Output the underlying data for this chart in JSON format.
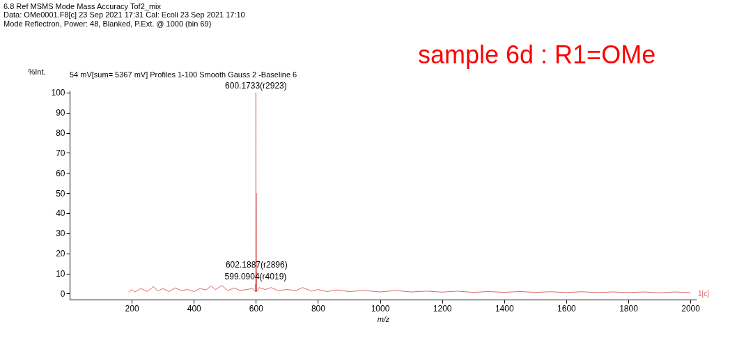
{
  "chart_data": {
    "type": "line",
    "title": "6.8 Ref MSMS Mode Mass Accuracy Tof2_mix",
    "subtitle": "Data: OMe0001.F8[c] 23 Sep 2021 17:31 Cal: Ecoli 23 Sep 2021 17:10\nMode Reflectron, Power: 48, Blanked, P.Ext. @ 1000 (bin 69)",
    "xlabel": "m/z",
    "ylabel": "%Int.",
    "x": [
      190,
      200,
      210,
      230,
      250,
      270,
      285,
      300,
      320,
      340,
      360,
      380,
      400,
      420,
      440,
      455,
      470,
      490,
      510,
      530,
      550,
      570,
      590,
      598,
      599.09,
      599.6,
      600.17,
      600.7,
      601.18,
      601.7,
      602.19,
      602.7,
      610,
      630,
      650,
      670,
      700,
      730,
      750,
      780,
      800,
      830,
      860,
      900,
      950,
      1000,
      1050,
      1100,
      1150,
      1200,
      1250,
      1300,
      1350,
      1400,
      1450,
      1500,
      1550,
      1600,
      1650,
      1700,
      1750,
      1800,
      1850,
      1900,
      1950,
      2000
    ],
    "series": [
      {
        "color": "#e06666",
        "values": [
          0.5,
          2,
          0.8,
          2.5,
          1,
          3.5,
          1.2,
          2.5,
          1,
          2.8,
          1.5,
          2,
          1,
          2.5,
          1.8,
          3.8,
          2,
          4,
          1.5,
          2.8,
          1.5,
          2,
          2.5,
          1,
          5,
          1,
          100,
          1,
          50,
          1,
          11,
          1,
          3,
          2,
          3,
          1.5,
          2,
          1.5,
          3,
          1.2,
          2,
          1,
          1.8,
          1,
          1.5,
          0.8,
          1.5,
          0.8,
          1.2,
          0.7,
          1.2,
          0.6,
          1,
          0.6,
          1,
          0.6,
          0.9,
          0.5,
          0.9,
          0.5,
          0.8,
          0.5,
          0.8,
          0.4,
          0.8,
          0.5
        ]
      }
    ],
    "xlim": [
      0,
      2020
    ],
    "ylim": [
      -3,
      101
    ],
    "xticks": [
      200,
      400,
      600,
      800,
      1000,
      1200,
      1400,
      1600,
      1800,
      2000
    ],
    "yticks": [
      0,
      10,
      20,
      30,
      40,
      50,
      60,
      70,
      80,
      90,
      100
    ],
    "grid": false,
    "marker": "none",
    "line_style": "solid",
    "annotations": [
      {
        "text": "600.1733(r2923)",
        "x": 600.1733,
        "y": 100
      },
      {
        "text": "602.1887(r2896)",
        "x": 602.1887,
        "y": 11
      },
      {
        "text": "599.0904(r4019)",
        "x": 599.0904,
        "y": 5
      },
      "54 mV[sum= 5367 mV]  Profiles 1-100 Smooth Gauss 2 -Baseline 6",
      "sample 6d : R1=OMe",
      "1[c]"
    ]
  }
}
